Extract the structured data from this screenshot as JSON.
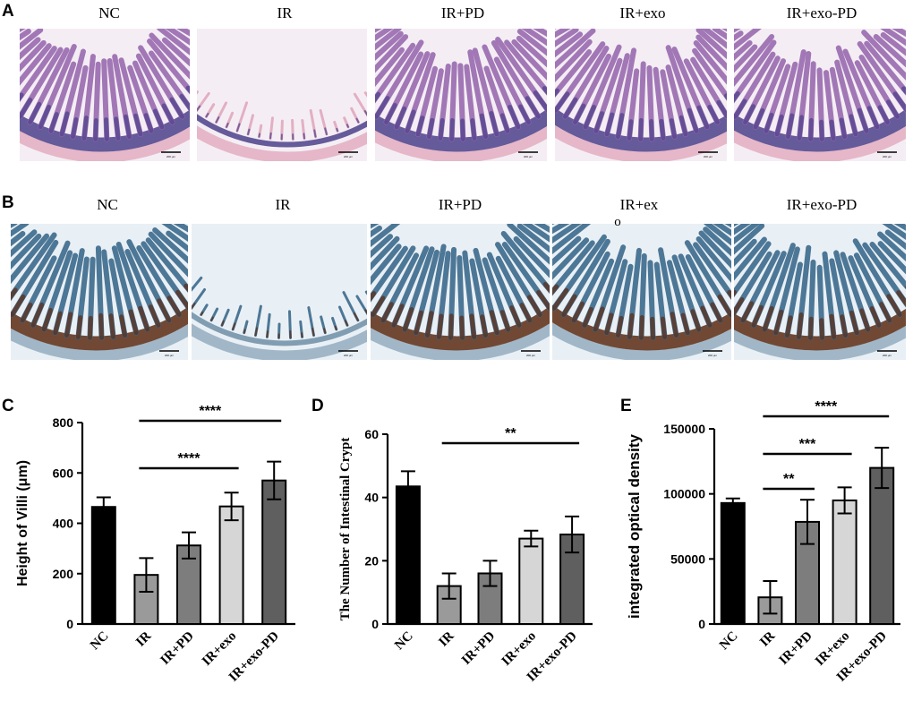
{
  "panels": {
    "A": {
      "letter": "A",
      "labels": [
        "NC",
        "IR",
        "IR+PD",
        "IR+exo",
        "IR+exo-PD"
      ],
      "scale_text": "200 μm"
    },
    "B": {
      "letter": "B",
      "labels": [
        "NC",
        "IR",
        "IR+PD",
        "IR+ex",
        "IR+exo-PD"
      ],
      "stray_char": "o",
      "scale_text": "200 μm"
    },
    "C": {
      "letter": "C"
    },
    "D": {
      "letter": "D"
    },
    "E": {
      "letter": "E"
    }
  },
  "colors": {
    "he_bg": "#f4eef4",
    "he_tissue": "#9a6bb0",
    "he_dark": "#4b3f8a",
    "he_pink": "#e2a9bd",
    "ihc_bg": "#e9f0f5",
    "ihc_tissue": "#3d6a8c",
    "ihc_brown": "#5a2a12",
    "bar_colors": [
      "#000000",
      "#9a9a9a",
      "#7d7d7d",
      "#d6d6d6",
      "#5f5f5f"
    ]
  },
  "chart_data": [
    {
      "type": "bar",
      "panel": "C",
      "categories": [
        "NC",
        "IR",
        "IR+PD",
        "IR+exo",
        "IR+exo-PD"
      ],
      "values": [
        465,
        195,
        312,
        467,
        570
      ],
      "errors": [
        38,
        67,
        52,
        55,
        75
      ],
      "ylabel": "Height of Villi (μm)",
      "ylim": [
        0,
        800
      ],
      "yticks": [
        0,
        200,
        400,
        600,
        800
      ],
      "significance": [
        {
          "from": "IR",
          "to": "IR+exo",
          "label": "****"
        },
        {
          "from": "IR",
          "to": "IR+exo-PD",
          "label": "****"
        }
      ]
    },
    {
      "type": "bar",
      "panel": "D",
      "categories": [
        "NC",
        "IR",
        "IR+PD",
        "IR+exo",
        "IR+exo-PD"
      ],
      "values": [
        43.5,
        12,
        16,
        27,
        28.3
      ],
      "errors": [
        4.8,
        4,
        4,
        2.5,
        5.7
      ],
      "ylabel": "The Number of Intestinal Crypt",
      "ylim": [
        0,
        60
      ],
      "yticks": [
        0,
        20,
        40,
        60
      ],
      "significance": [
        {
          "from": "IR",
          "to": "IR+exo-PD",
          "label": "**"
        }
      ]
    },
    {
      "type": "bar",
      "panel": "E",
      "categories": [
        "NC",
        "IR",
        "IR+PD",
        "IR+exo",
        "IR+exo-PD"
      ],
      "values": [
        93000,
        20500,
        78500,
        95000,
        120000
      ],
      "errors": [
        3500,
        12500,
        17000,
        10000,
        15500
      ],
      "ylabel": "integrated optical density",
      "ylim": [
        0,
        150000
      ],
      "yticks": [
        0,
        50000,
        100000,
        150000
      ],
      "significance": [
        {
          "from": "IR",
          "to": "IR+PD",
          "label": "**"
        },
        {
          "from": "IR",
          "to": "IR+exo",
          "label": "***"
        },
        {
          "from": "IR",
          "to": "IR+exo-PD",
          "label": "****"
        }
      ]
    }
  ]
}
